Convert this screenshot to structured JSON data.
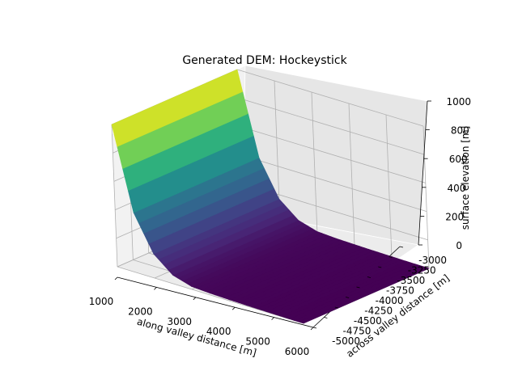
{
  "chart_data": {
    "type": "surface",
    "title": "Generated DEM: Hockeystick",
    "xlabel": "along valley distance [m]",
    "ylabel": "across valley distance [m]",
    "zlabel": "surface elevation [m]",
    "xlim": [
      1000,
      6000
    ],
    "ylim": [
      -5000,
      -3000
    ],
    "zlim": [
      0,
      1000
    ],
    "x_ticks": [
      "1000",
      "2000",
      "3000",
      "4000",
      "5000",
      "6000"
    ],
    "y_ticks": [
      "-5000",
      "-4750",
      "-4500",
      "-4250",
      "-4000",
      "-3750",
      "-3500",
      "-3250",
      "-3000"
    ],
    "z_ticks": [
      "0",
      "200",
      "400",
      "600",
      "800",
      "1000"
    ],
    "colormap": "viridis",
    "grid": true,
    "profile_along_valley": {
      "x": [
        1000,
        1500,
        2000,
        2500,
        3000,
        3500,
        4000,
        4500,
        5000,
        5500,
        6000
      ],
      "z": [
        1000,
        420,
        170,
        60,
        20,
        12,
        8,
        5,
        3,
        1,
        0
      ]
    }
  }
}
